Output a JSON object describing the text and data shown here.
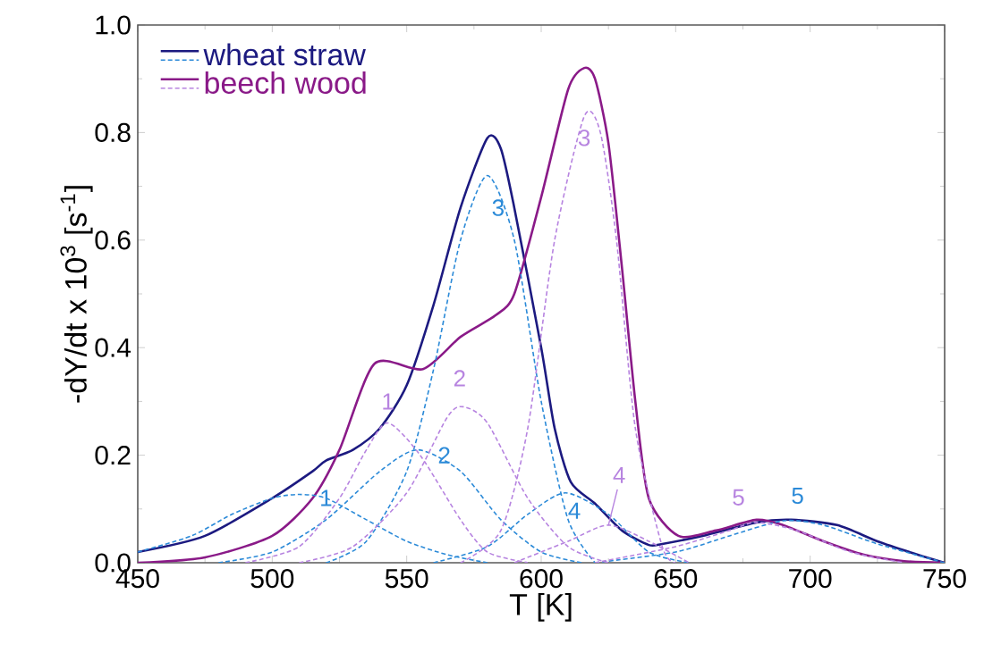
{
  "chart_data": {
    "type": "line",
    "xlabel": "T [K]",
    "ylabel": "-dY/dt x 10$^{3}$ [s$^{-1}$]",
    "xlim": [
      450,
      750
    ],
    "ylim": [
      0,
      1.0
    ],
    "xticks": [
      450,
      500,
      550,
      600,
      650,
      700,
      750
    ],
    "yticks": [
      {
        "value": 0,
        "label": "0.0"
      },
      0.2,
      0.4,
      0.6,
      0.8,
      {
        "value": 1.0,
        "label": "1.0"
      }
    ],
    "grid": false,
    "legend": "top left",
    "marker": "none",
    "series": [
      {
        "name": "wheat straw",
        "color": "#1c1a80",
        "line_style": "solid",
        "x": [
          450,
          475,
          500,
          515,
          520,
          530,
          540,
          550,
          560,
          570,
          580,
          585,
          590,
          600,
          605,
          611,
          620,
          630,
          640,
          645,
          660,
          680,
          693,
          710,
          725,
          740,
          750
        ],
        "values": [
          0.02,
          0.05,
          0.12,
          0.17,
          0.19,
          0.21,
          0.25,
          0.33,
          0.48,
          0.66,
          0.79,
          0.77,
          0.66,
          0.4,
          0.25,
          0.15,
          0.11,
          0.06,
          0.033,
          0.035,
          0.05,
          0.075,
          0.08,
          0.07,
          0.04,
          0.015,
          0.0
        ]
      },
      {
        "name": "beech wood",
        "color": "#8a1a88",
        "line_style": "solid",
        "x": [
          450,
          475,
          500,
          515,
          525,
          538,
          556,
          570,
          583,
          590,
          600,
          610,
          616,
          620,
          625,
          630,
          635,
          640,
          651,
          665,
          680,
          690,
          705,
          720,
          735,
          750
        ],
        "values": [
          0.0,
          0.01,
          0.05,
          0.12,
          0.21,
          0.37,
          0.36,
          0.42,
          0.46,
          0.5,
          0.68,
          0.88,
          0.92,
          0.9,
          0.78,
          0.55,
          0.3,
          0.12,
          0.05,
          0.06,
          0.08,
          0.07,
          0.04,
          0.015,
          0.003,
          0.0
        ]
      },
      {
        "color": "#2b8ad8",
        "line_style": "dashed",
        "x": [
          450,
          470,
          485,
          500,
          510,
          520,
          535,
          550,
          565,
          580
        ],
        "values": [
          0.02,
          0.05,
          0.09,
          0.12,
          0.127,
          0.12,
          0.08,
          0.04,
          0.015,
          0.0
        ]
      },
      {
        "color": "#2b8ad8",
        "line_style": "dashed",
        "x": [
          480,
          500,
          520,
          540,
          554,
          570,
          585,
          600,
          615
        ],
        "values": [
          0.0,
          0.02,
          0.08,
          0.17,
          0.21,
          0.17,
          0.08,
          0.02,
          0.0
        ]
      },
      {
        "color": "#2b8ad8",
        "line_style": "dashed",
        "x": [
          520,
          535,
          550,
          560,
          570,
          580,
          590,
          600,
          610,
          620
        ],
        "values": [
          0.0,
          0.04,
          0.17,
          0.36,
          0.6,
          0.72,
          0.6,
          0.3,
          0.08,
          0.0
        ]
      },
      {
        "color": "#2b8ad8",
        "line_style": "dashed",
        "x": [
          560,
          580,
          595,
          609,
          625,
          640,
          655
        ],
        "values": [
          0.0,
          0.03,
          0.09,
          0.13,
          0.09,
          0.02,
          0.0
        ]
      },
      {
        "color": "#2b8ad8",
        "line_style": "dashed",
        "x": [
          620,
          650,
          670,
          690,
          705,
          725,
          750
        ],
        "values": [
          0.0,
          0.02,
          0.05,
          0.078,
          0.07,
          0.035,
          0.0
        ]
      },
      {
        "color": "#b784e0",
        "line_style": "dashed",
        "x": [
          490,
          510,
          525,
          535,
          543,
          555,
          570,
          580,
          595
        ],
        "values": [
          0.0,
          0.03,
          0.12,
          0.21,
          0.26,
          0.2,
          0.08,
          0.02,
          0.0
        ]
      },
      {
        "color": "#b784e0",
        "line_style": "dashed",
        "x": [
          510,
          530,
          550,
          565,
          571,
          580,
          595,
          610,
          625
        ],
        "values": [
          0.0,
          0.03,
          0.13,
          0.27,
          0.29,
          0.26,
          0.12,
          0.03,
          0.0
        ]
      },
      {
        "color": "#b784e0",
        "line_style": "dashed",
        "x": [
          570,
          585,
          595,
          605,
          616,
          622,
          628,
          635,
          645,
          650
        ],
        "values": [
          0.0,
          0.06,
          0.25,
          0.6,
          0.83,
          0.8,
          0.6,
          0.25,
          0.03,
          0.0
        ]
      },
      {
        "color": "#b784e0",
        "line_style": "dashed",
        "x": [
          590,
          610,
          625,
          640,
          655
        ],
        "values": [
          0.0,
          0.04,
          0.07,
          0.04,
          0.0
        ]
      },
      {
        "color": "#b784e0",
        "line_style": "dashed",
        "x": [
          620,
          650,
          670,
          680,
          695,
          715,
          735
        ],
        "values": [
          0.0,
          0.03,
          0.06,
          0.075,
          0.06,
          0.02,
          0.0
        ]
      }
    ],
    "annotations": [
      {
        "text": "1",
        "x": 510,
        "y": 0.127
      },
      {
        "text": "2",
        "x": 554,
        "y": 0.21
      },
      {
        "text": "3",
        "x": 580,
        "y": 0.72
      },
      {
        "text": "4",
        "x": 609,
        "y": 0.13
      },
      {
        "text": "5",
        "x": 690,
        "y": 0.078
      },
      {
        "text": "1",
        "x": 543,
        "y": 0.26
      },
      {
        "text": "2",
        "x": 571,
        "y": 0.29
      },
      {
        "text": "3",
        "x": 616,
        "y": 0.83
      },
      {
        "text": "4",
        "x": 625,
        "y": 0.07
      },
      {
        "text": "5",
        "x": 680,
        "y": 0.075
      }
    ]
  }
}
